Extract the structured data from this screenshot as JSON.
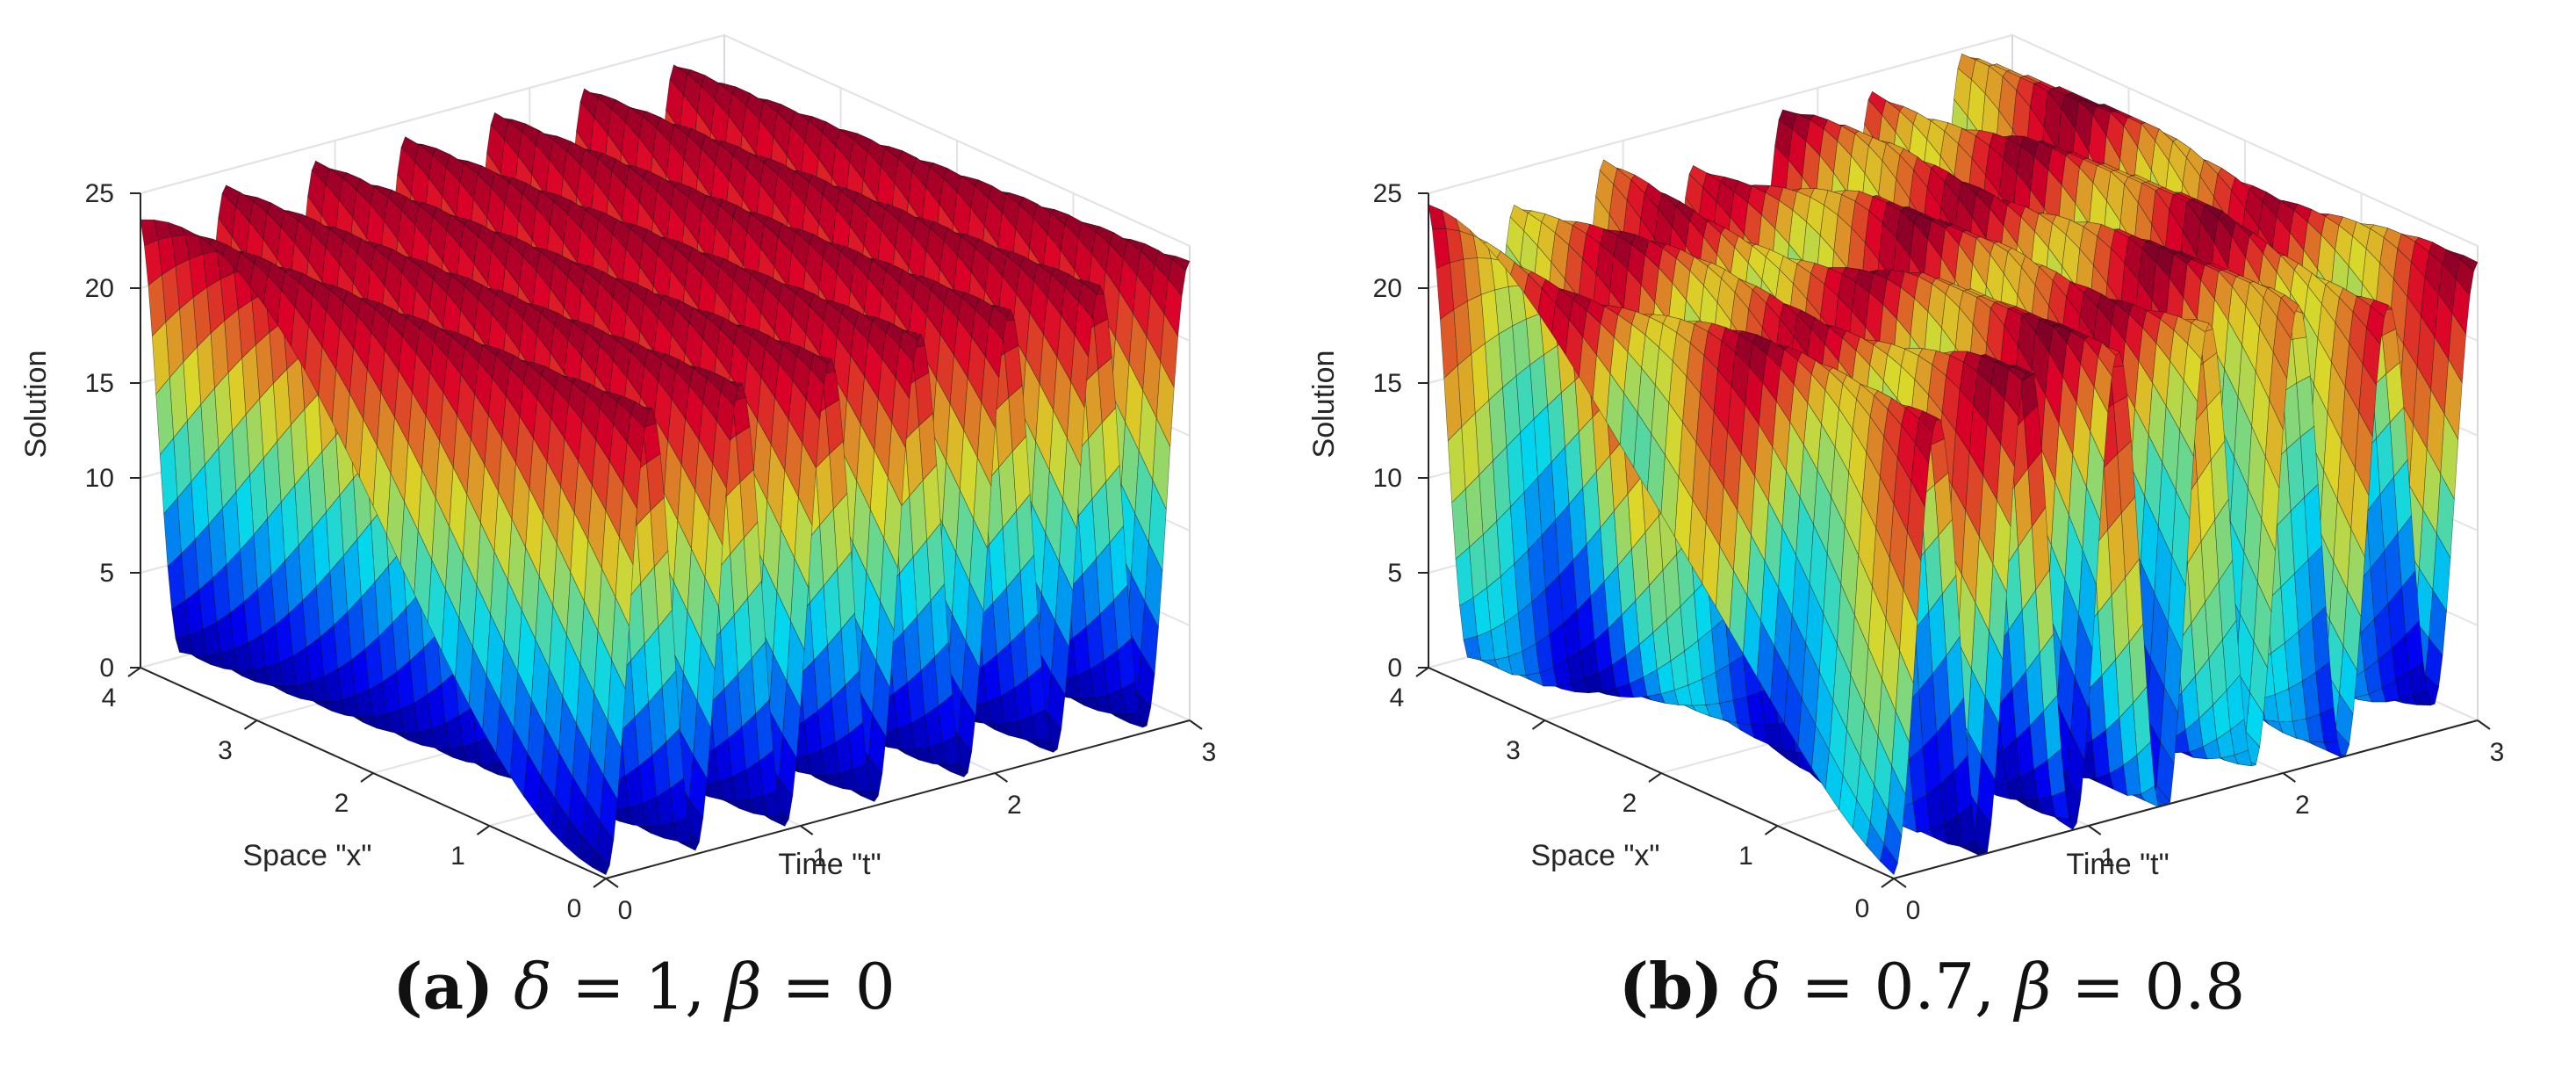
{
  "chart_data": [
    {
      "type": "surface",
      "panel": "a",
      "caption": {
        "tag": "(a)",
        "delta_symbol": "δ",
        "delta_value": "= 1,",
        "beta_symbol": "β",
        "beta_value": "= 0"
      },
      "xlabel": "Space \"x\"",
      "ylabel": "Time \"t\"",
      "zlabel": "Solution",
      "xlim": [
        0,
        4
      ],
      "ylim": [
        0,
        3
      ],
      "zlim": [
        0,
        25
      ],
      "xticks": [
        "0",
        "1",
        "2",
        "3",
        "4"
      ],
      "yticks": [
        "0",
        "1",
        "2",
        "3"
      ],
      "zticks": [
        "0",
        "5",
        "10",
        "15",
        "20",
        "25"
      ],
      "peak_value": 25,
      "ridge_count": 7,
      "grid": true,
      "colormap": "jet"
    },
    {
      "type": "surface",
      "panel": "b",
      "caption": {
        "tag": "(b)",
        "delta_symbol": "δ",
        "delta_value": "= 0.7,",
        "beta_symbol": "β",
        "beta_value": "= 0.8"
      },
      "xlabel": "Space \"x\"",
      "ylabel": "Time \"t\"",
      "zlabel": "Solution",
      "xlim": [
        0,
        4
      ],
      "ylim": [
        0,
        3
      ],
      "zlim": [
        0,
        25
      ],
      "xticks": [
        "0",
        "1",
        "2",
        "3",
        "4"
      ],
      "yticks": [
        "0",
        "1",
        "2",
        "3"
      ],
      "zticks": [
        "0",
        "5",
        "10",
        "15",
        "20",
        "25"
      ],
      "peak_value": 25,
      "ridge_count": 7,
      "grid": true,
      "colormap": "jet"
    }
  ]
}
